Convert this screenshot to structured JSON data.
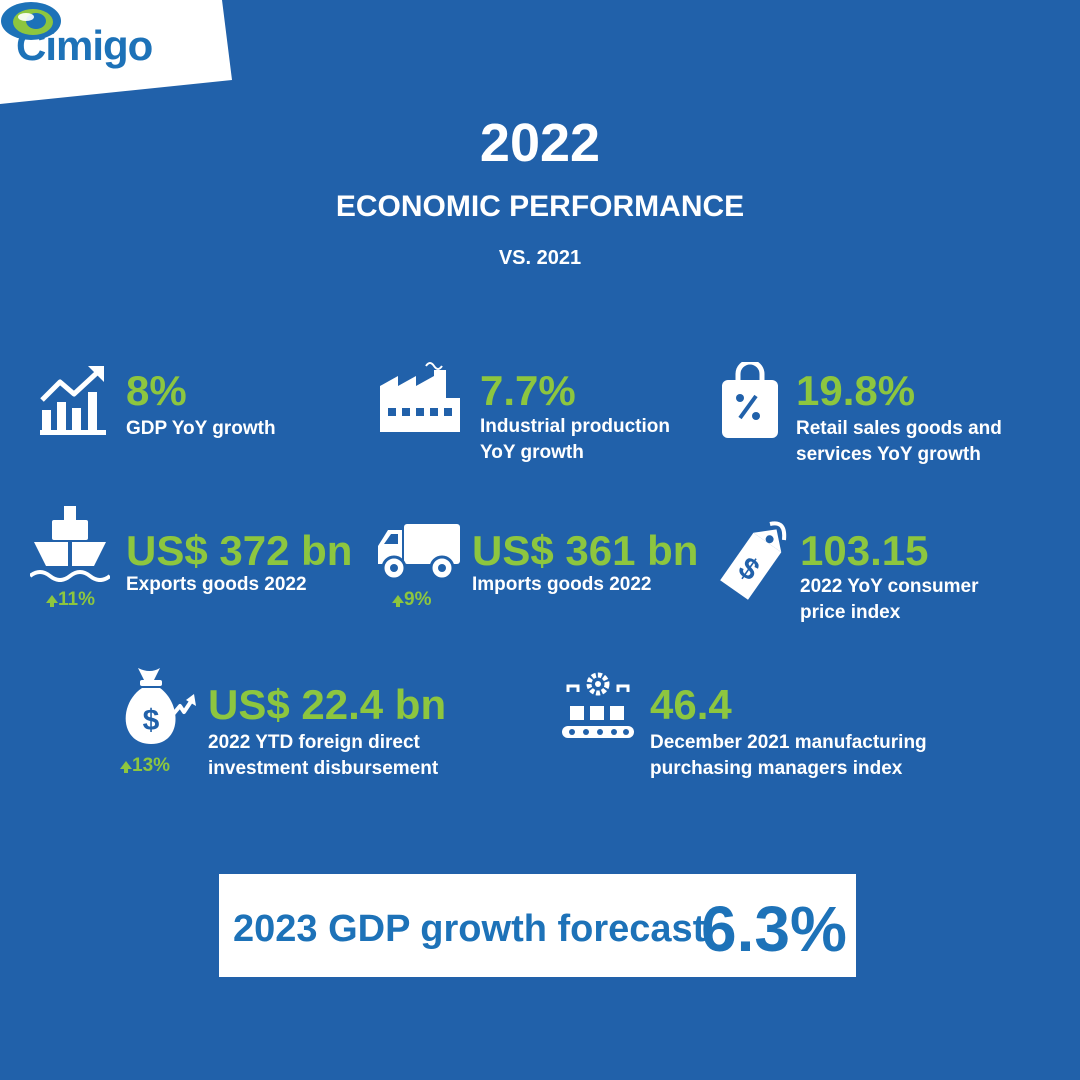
{
  "brand": {
    "name": "Cimigo",
    "colors": {
      "background": "#2161aa",
      "accent_green": "#8dc63f",
      "brand_blue": "#1d72b8",
      "white": "#ffffff"
    }
  },
  "header": {
    "year": "2022",
    "title": "ECONOMIC PERFORMANCE",
    "subtitle": "VS. 2021"
  },
  "stats": {
    "gdp": {
      "value": "8%",
      "label_lines": [
        "GDP YoY growth"
      ],
      "icon": "growth-chart-icon"
    },
    "industrial": {
      "value": "7.7%",
      "label_lines": [
        "Industrial production",
        "YoY growth"
      ],
      "icon": "factory-icon"
    },
    "retail": {
      "value": "19.8%",
      "label_lines": [
        "Retail sales goods and",
        "services YoY growth"
      ],
      "icon": "shopping-bag-percent-icon"
    },
    "exports": {
      "value": "US$ 372 bn",
      "label_lines": [
        "Exports goods 2022"
      ],
      "change": "11%",
      "icon": "ship-icon"
    },
    "imports": {
      "value": "US$ 361 bn",
      "label_lines": [
        "Imports goods 2022"
      ],
      "change": "9%",
      "icon": "truck-icon"
    },
    "cpi": {
      "value": "103.15",
      "label_lines": [
        "2022 YoY consumer",
        "price index"
      ],
      "icon": "price-tag-icon"
    },
    "fdi": {
      "value": "US$ 22.4 bn",
      "label_lines": [
        "2022 YTD foreign direct",
        "investment disbursement"
      ],
      "change": "13%",
      "icon": "money-bag-icon"
    },
    "pmi": {
      "value": "46.4",
      "label_lines": [
        "December 2021 manufacturing",
        "purchasing managers index"
      ],
      "icon": "manufacturing-line-icon"
    }
  },
  "forecast": {
    "label": "2023 GDP growth forecast",
    "value": "6.3%"
  }
}
